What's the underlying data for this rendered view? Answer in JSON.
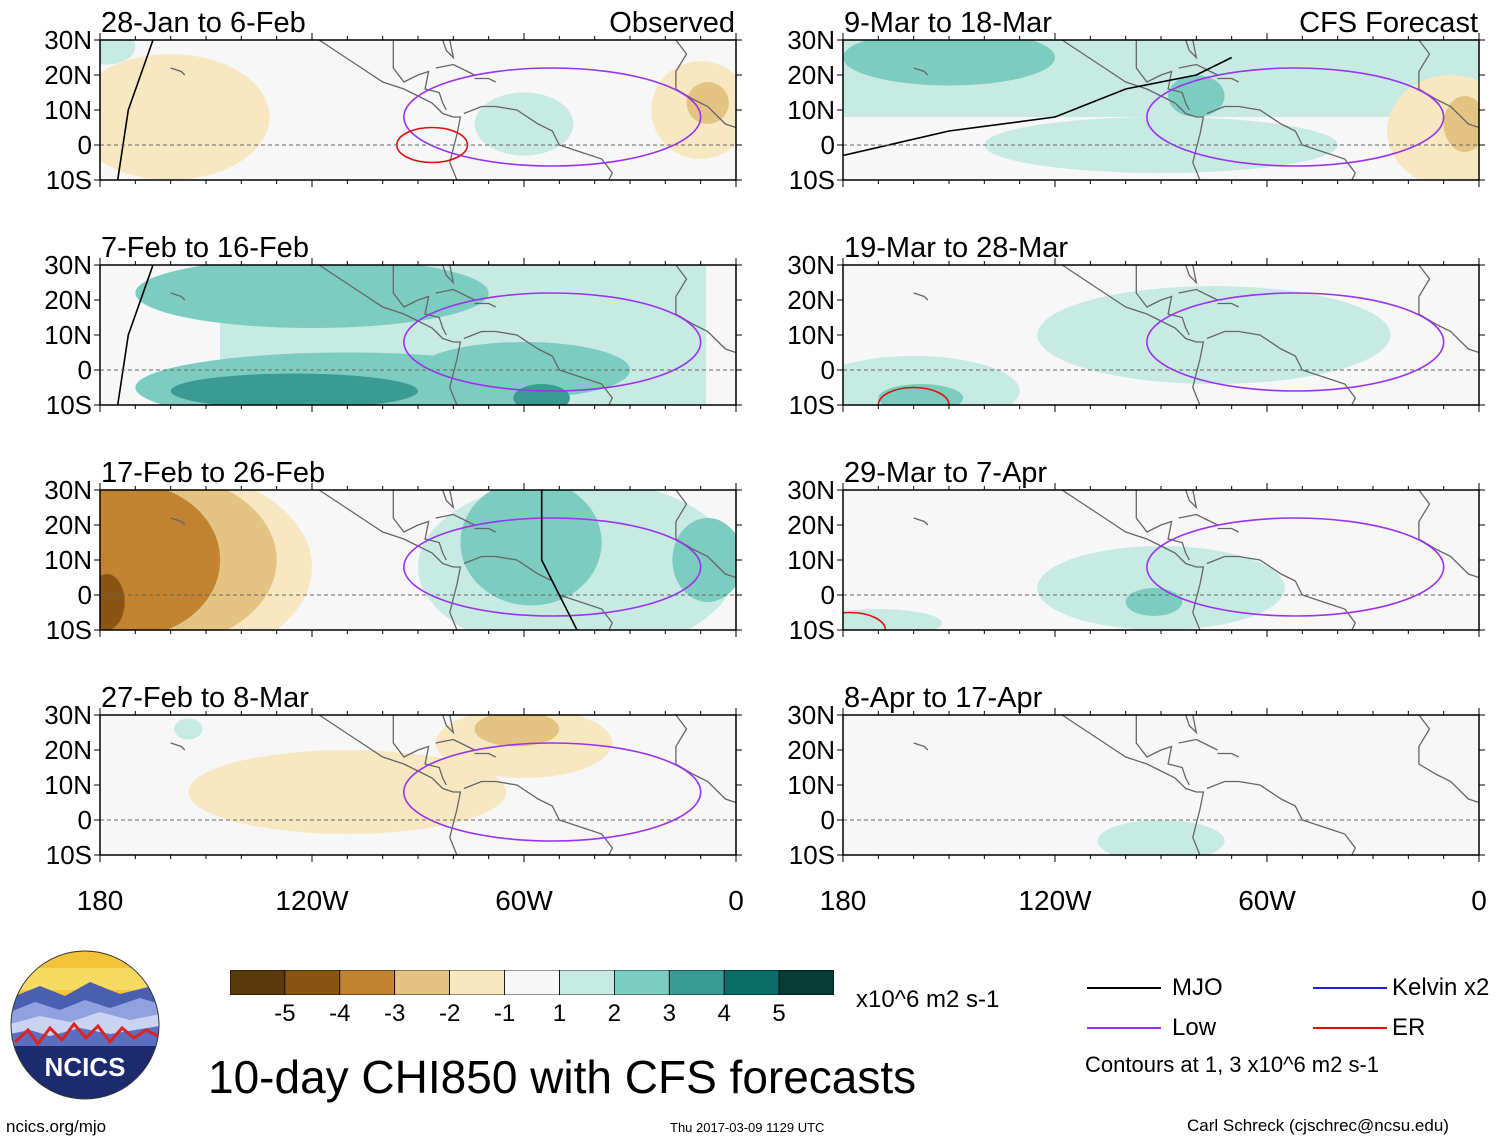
{
  "chart_data": {
    "type": "heatmap",
    "title": "10-day CHI850 with CFS forecasts",
    "units": "x10^6 m2 s-1",
    "lat_ticks": [
      "30N",
      "20N",
      "10N",
      "0",
      "10S"
    ],
    "lon_ticks": [
      "180",
      "120W",
      "60W",
      "0"
    ],
    "panels_observed": [
      {
        "period": "28-Jan to 6-Feb",
        "tag": "Observed",
        "dominant_anomaly": -1,
        "has_mjo": true,
        "has_low": true,
        "has_er": true
      },
      {
        "period": "7-Feb to 16-Feb",
        "tag": "",
        "dominant_anomaly": 3,
        "has_mjo": true,
        "has_low": true,
        "has_er": false
      },
      {
        "period": "17-Feb to 26-Feb",
        "tag": "",
        "dominant_anomaly": -3,
        "has_mjo": true,
        "has_low": true,
        "has_er": false
      },
      {
        "period": "27-Feb to 8-Mar",
        "tag": "",
        "dominant_anomaly": -1,
        "has_mjo": false,
        "has_low": true,
        "has_er": false
      }
    ],
    "panels_forecast": [
      {
        "period": "9-Mar to 18-Mar",
        "tag": "CFS Forecast",
        "dominant_anomaly": 1,
        "has_mjo": true,
        "has_low": true,
        "has_er": false
      },
      {
        "period": "19-Mar to 28-Mar",
        "tag": "",
        "dominant_anomaly": 1,
        "has_mjo": false,
        "has_low": true,
        "has_er": true
      },
      {
        "period": "29-Mar to 7-Apr",
        "tag": "",
        "dominant_anomaly": 1,
        "has_mjo": false,
        "has_low": true,
        "has_er": true
      },
      {
        "period": "8-Apr to 17-Apr",
        "tag": "",
        "dominant_anomaly": 0,
        "has_mjo": false,
        "has_low": false,
        "has_er": false
      }
    ],
    "colorbar": {
      "levels": [
        "-5",
        "-4",
        "-3",
        "-2",
        "-1",
        "1",
        "2",
        "3",
        "4",
        "5"
      ],
      "colors": [
        "#5a3a0c",
        "#8a5412",
        "#c38431",
        "#e4c482",
        "#f8e8c2",
        "#f7f7f7",
        "#c7ebe3",
        "#7ccdc0",
        "#3b9b94",
        "#0b6d66",
        "#073b36"
      ]
    },
    "legend": [
      {
        "label": "MJO",
        "color": "#000000"
      },
      {
        "label": "Kelvin x2",
        "color": "#2222dd"
      },
      {
        "label": "Low",
        "color": "#9933ee"
      },
      {
        "label": "ER",
        "color": "#dd1111"
      }
    ],
    "contour_note": "Contours at 1, 3 x10^6 m2 s-1"
  },
  "footer": {
    "logo_text": "NCICS",
    "url": "ncics.org/mjo",
    "timestamp": "Thu 2017-03-09 1129 UTC",
    "author": "Carl Schreck (cjschrec@ncsu.edu)"
  }
}
